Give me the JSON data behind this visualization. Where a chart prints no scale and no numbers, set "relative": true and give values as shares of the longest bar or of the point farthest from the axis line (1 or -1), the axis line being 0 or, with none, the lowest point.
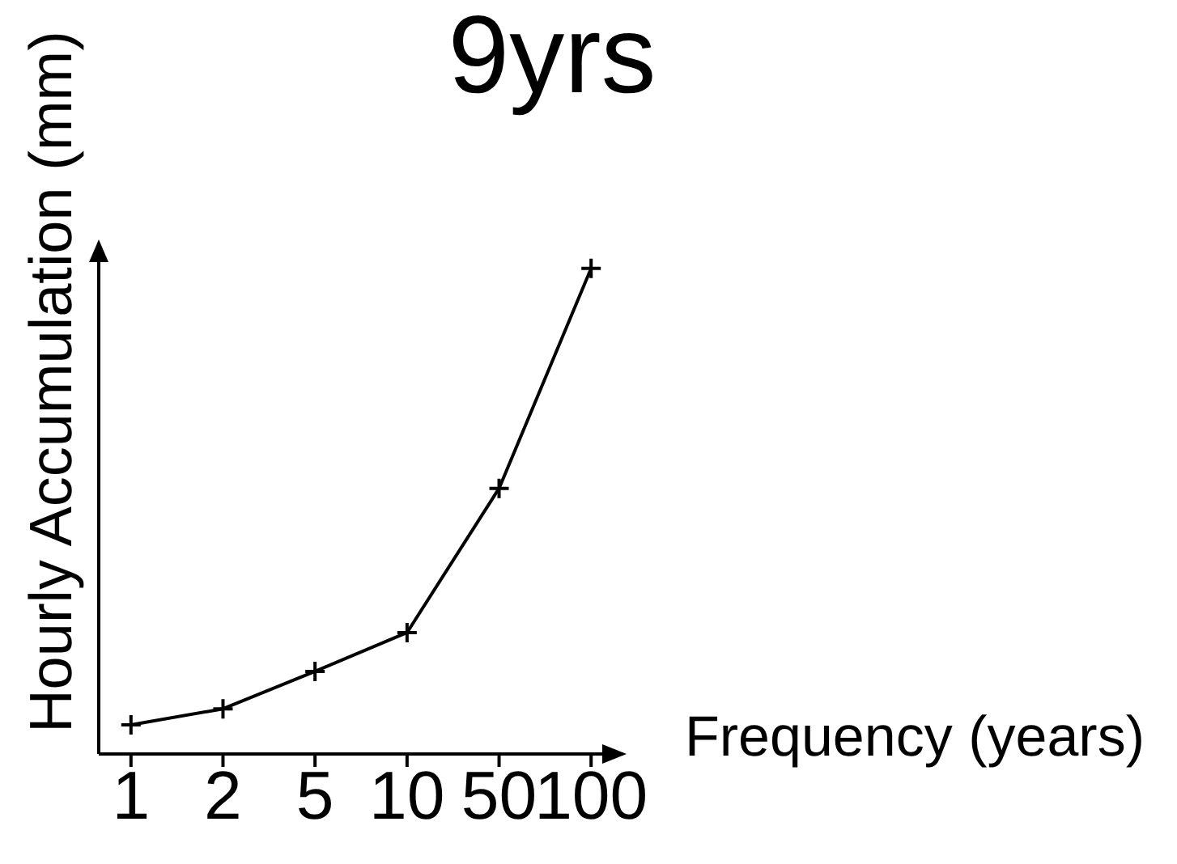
{
  "chart_data": {
    "type": "line",
    "title": "9yrs",
    "xlabel": "Frequency (years)",
    "ylabel": "Hourly Accumulation (mm)",
    "categories": [
      "1",
      "2",
      "5",
      "10",
      "50",
      "100"
    ],
    "relative": true,
    "series": [
      {
        "color": "#000000",
        "values": [
          0.06,
          0.093,
          0.17,
          0.25,
          0.547,
          1
        ]
      }
    ],
    "marker": "cross",
    "line_style": "solid",
    "grid": false
  }
}
